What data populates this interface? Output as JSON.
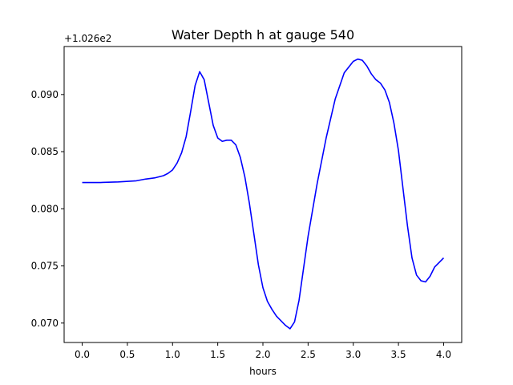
{
  "chart_data": {
    "type": "line",
    "title": "Water Depth h at gauge 540",
    "xlabel": "hours",
    "ylabel": "",
    "y_offset_label": "+1.026e2",
    "xlim": [
      -0.2,
      4.2
    ],
    "ylim": [
      0.0683,
      0.0942
    ],
    "x_ticks": [
      0.0,
      0.5,
      1.0,
      1.5,
      2.0,
      2.5,
      3.0,
      3.5,
      4.0
    ],
    "x_tick_labels": [
      "0.0",
      "0.5",
      "1.0",
      "1.5",
      "2.0",
      "2.5",
      "3.0",
      "3.5",
      "4.0"
    ],
    "y_ticks": [
      0.07,
      0.075,
      0.08,
      0.085,
      0.09
    ],
    "y_tick_labels": [
      "0.070",
      "0.075",
      "0.080",
      "0.085",
      "0.090"
    ],
    "grid": false,
    "legend": "none",
    "series": [
      {
        "color": "#0000ff",
        "x": [
          0.0,
          0.2,
          0.4,
          0.6,
          0.7,
          0.8,
          0.9,
          0.95,
          1.0,
          1.05,
          1.1,
          1.15,
          1.2,
          1.25,
          1.3,
          1.35,
          1.4,
          1.45,
          1.5,
          1.55,
          1.6,
          1.65,
          1.7,
          1.75,
          1.8,
          1.85,
          1.9,
          1.95,
          2.0,
          2.05,
          2.1,
          2.15,
          2.2,
          2.25,
          2.3,
          2.35,
          2.4,
          2.45,
          2.5,
          2.55,
          2.6,
          2.7,
          2.8,
          2.9,
          3.0,
          3.05,
          3.1,
          3.15,
          3.2,
          3.25,
          3.3,
          3.35,
          3.4,
          3.45,
          3.5,
          3.55,
          3.6,
          3.65,
          3.7,
          3.75,
          3.8,
          3.85,
          3.9,
          3.95,
          4.0
        ],
        "y": [
          0.0823,
          0.0823,
          0.08235,
          0.08245,
          0.0826,
          0.0827,
          0.0829,
          0.0831,
          0.0834,
          0.084,
          0.0849,
          0.0863,
          0.0885,
          0.0908,
          0.092,
          0.0913,
          0.0893,
          0.0873,
          0.0862,
          0.0859,
          0.086,
          0.086,
          0.0856,
          0.0845,
          0.0828,
          0.0805,
          0.0778,
          0.0751,
          0.0731,
          0.0719,
          0.0712,
          0.0706,
          0.0702,
          0.0698,
          0.0695,
          0.0701,
          0.072,
          0.0748,
          0.0776,
          0.0799,
          0.0822,
          0.0862,
          0.0896,
          0.0919,
          0.0929,
          0.0931,
          0.093,
          0.0925,
          0.0918,
          0.0913,
          0.091,
          0.0904,
          0.0893,
          0.0875,
          0.0851,
          0.0818,
          0.0785,
          0.0757,
          0.0742,
          0.0737,
          0.0736,
          0.0741,
          0.0749,
          0.0753,
          0.0757
        ]
      }
    ]
  }
}
